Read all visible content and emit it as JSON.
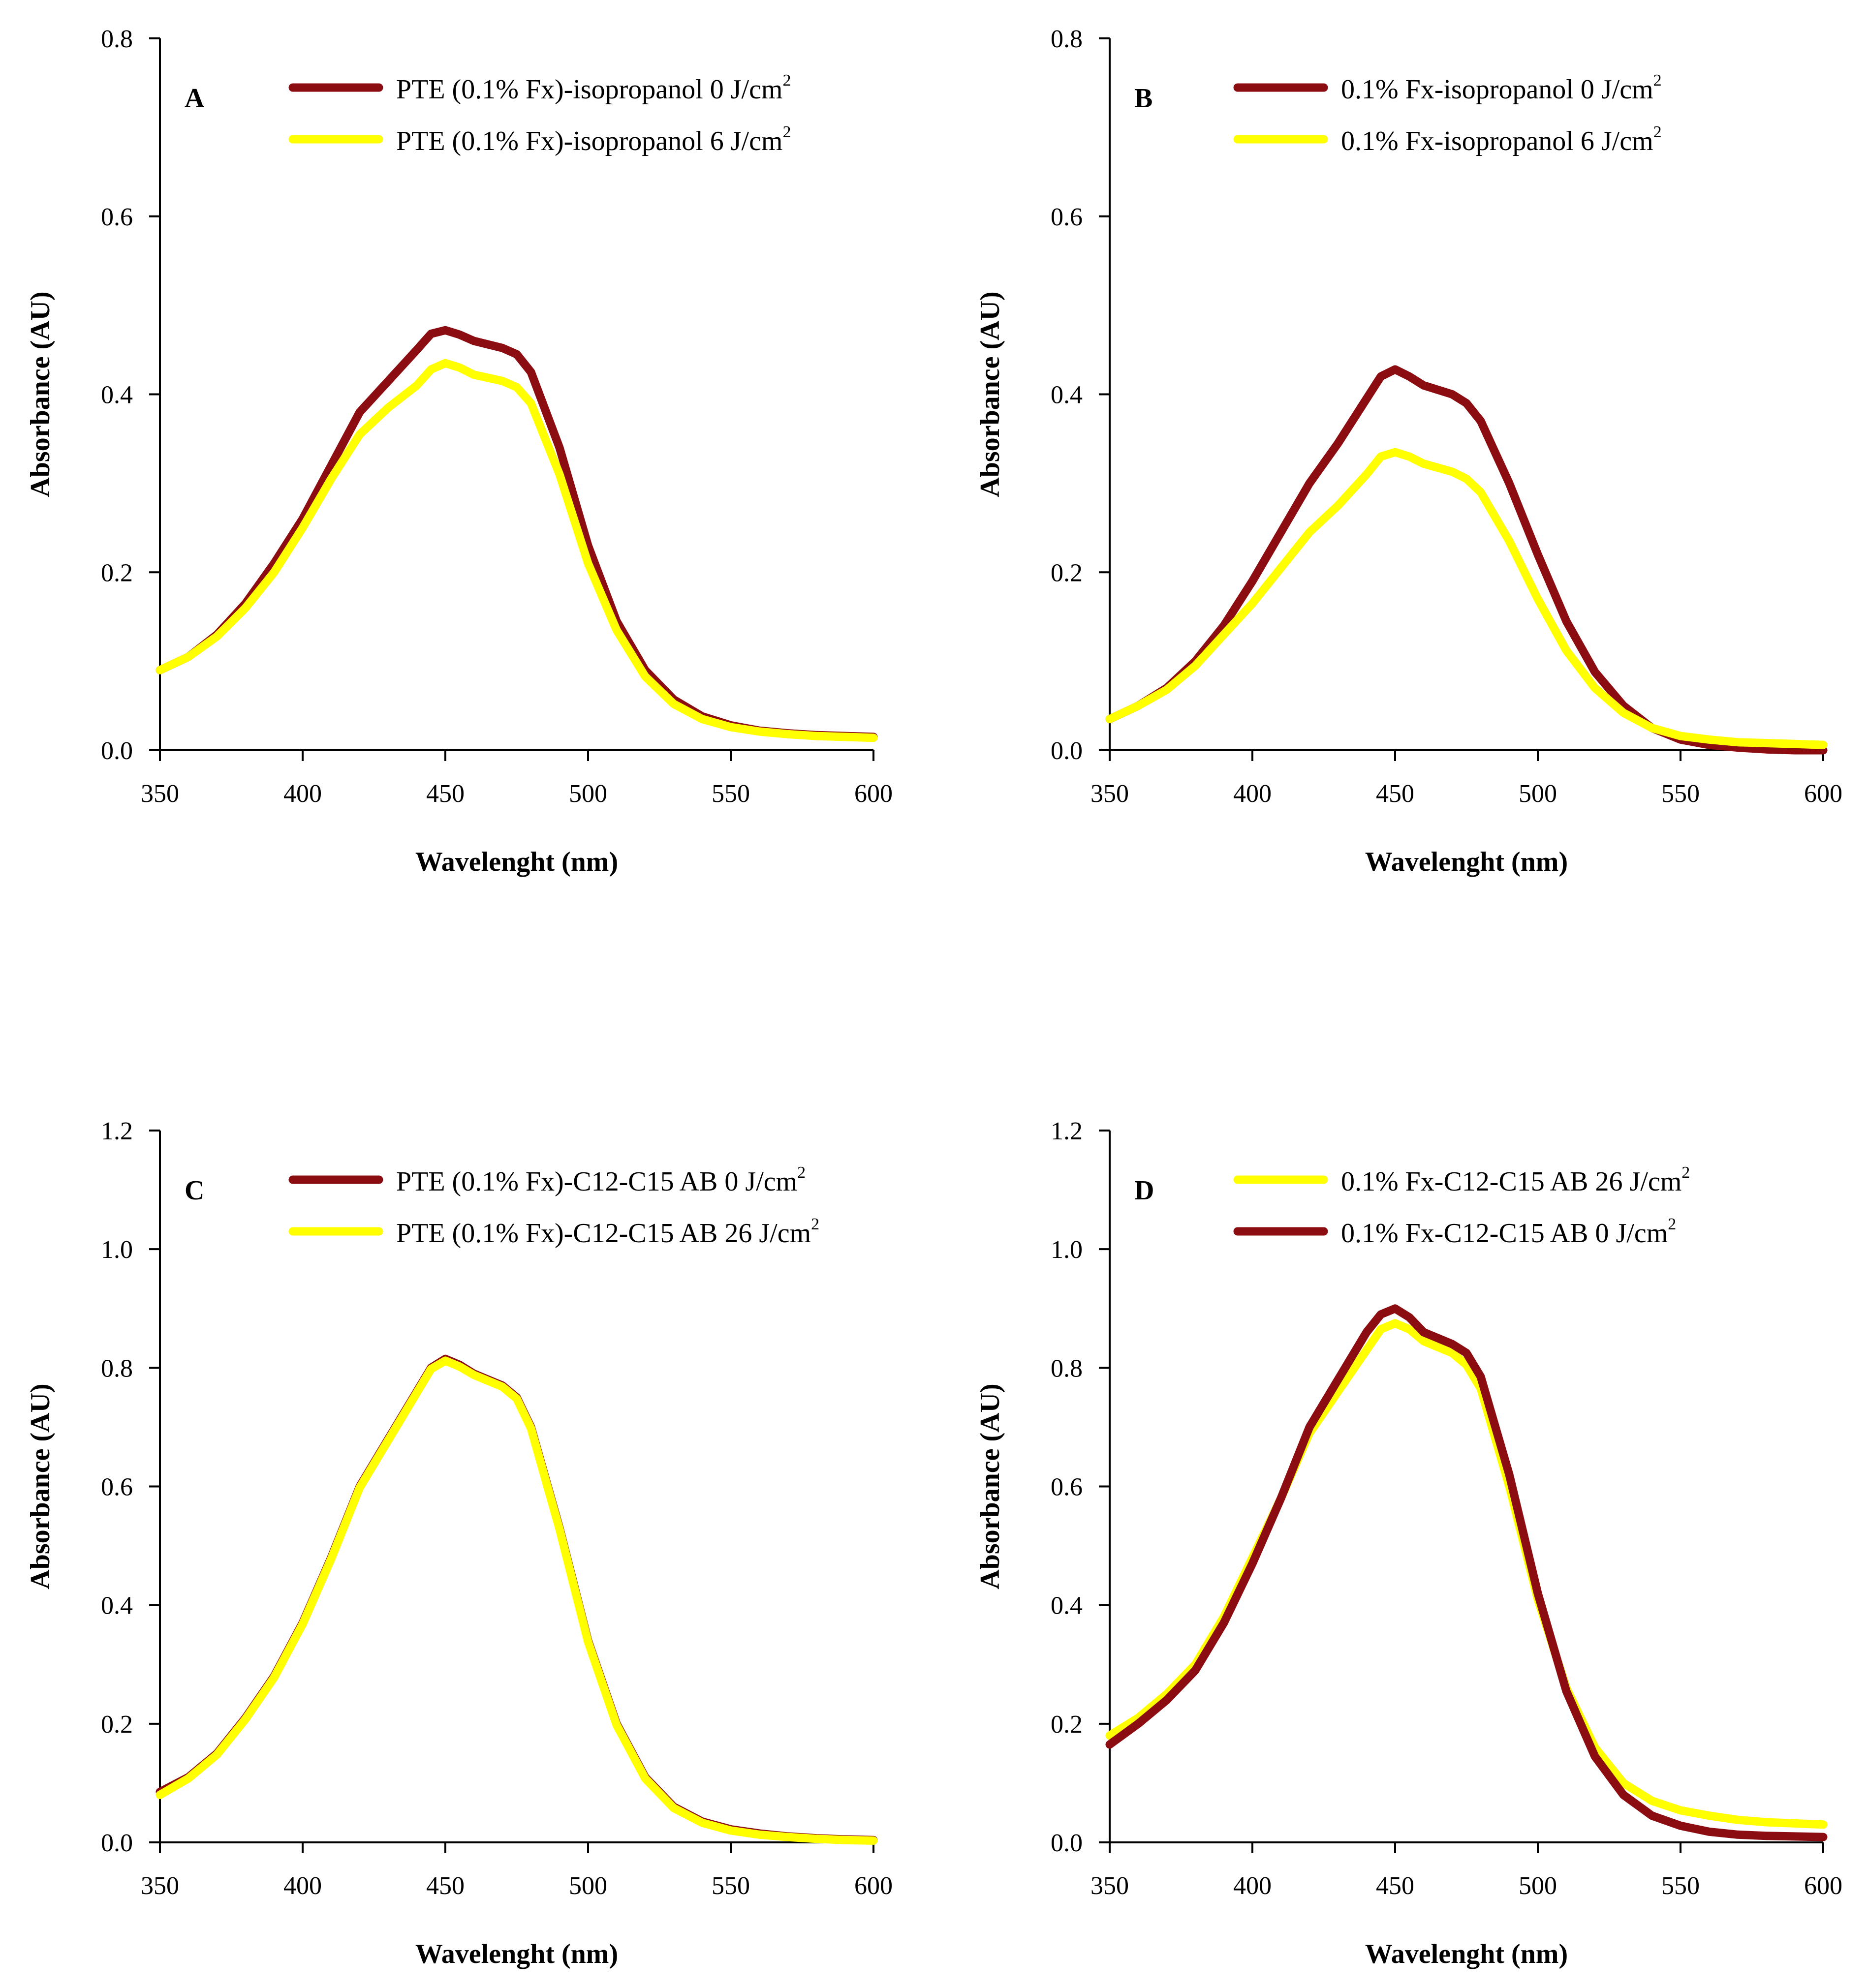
{
  "colors": {
    "dark_red": "#8b0d12",
    "yellow": "#ffff00",
    "axis": "#000000"
  },
  "chart_data": [
    {
      "type": "line",
      "panel": "A",
      "xlabel": "Wavelenght (nm)",
      "ylabel": "Absorbance (AU)",
      "xlim": [
        350,
        600
      ],
      "ylim": [
        0,
        0.8
      ],
      "xticks": [
        "350",
        "400",
        "450",
        "500",
        "550",
        "600"
      ],
      "yticks": [
        "0.0",
        "0.2",
        "0.4",
        "0.6",
        "0.8"
      ],
      "legend_position": "top-right",
      "series": [
        {
          "name": "PTE (0.1% Fx)-isopropanol 0 J/cm",
          "sup": "2",
          "color": "#8b0d12",
          "x": [
            350,
            360,
            370,
            380,
            390,
            400,
            410,
            420,
            430,
            440,
            445,
            450,
            455,
            460,
            470,
            475,
            480,
            490,
            500,
            510,
            520,
            530,
            540,
            550,
            560,
            570,
            580,
            590,
            600
          ],
          "y": [
            0.09,
            0.105,
            0.13,
            0.165,
            0.21,
            0.26,
            0.32,
            0.38,
            0.415,
            0.45,
            0.468,
            0.472,
            0.467,
            0.46,
            0.452,
            0.445,
            0.425,
            0.34,
            0.23,
            0.145,
            0.09,
            0.057,
            0.038,
            0.028,
            0.022,
            0.019,
            0.017,
            0.016,
            0.015
          ]
        },
        {
          "name": "PTE (0.1% Fx)-isopropanol 6 J/cm",
          "sup": "2",
          "color": "#ffff00",
          "x": [
            350,
            360,
            370,
            380,
            390,
            400,
            410,
            420,
            430,
            440,
            445,
            450,
            455,
            460,
            470,
            475,
            480,
            490,
            500,
            510,
            520,
            530,
            540,
            550,
            560,
            570,
            580,
            590,
            600
          ],
          "y": [
            0.09,
            0.105,
            0.128,
            0.16,
            0.2,
            0.25,
            0.305,
            0.355,
            0.385,
            0.41,
            0.428,
            0.435,
            0.43,
            0.422,
            0.415,
            0.408,
            0.39,
            0.31,
            0.21,
            0.135,
            0.083,
            0.052,
            0.035,
            0.026,
            0.021,
            0.018,
            0.016,
            0.015,
            0.014
          ]
        }
      ]
    },
    {
      "type": "line",
      "panel": "B",
      "xlabel": "Wavelenght (nm)",
      "ylabel": "Absorbance (AU)",
      "xlim": [
        350,
        600
      ],
      "ylim": [
        0,
        0.8
      ],
      "xticks": [
        "350",
        "400",
        "450",
        "500",
        "550",
        "600"
      ],
      "yticks": [
        "0.0",
        "0.2",
        "0.4",
        "0.6",
        "0.8"
      ],
      "legend_position": "top-right",
      "series": [
        {
          "name": "0.1% Fx-isopropanol 0 J/cm",
          "sup": "2",
          "color": "#8b0d12",
          "x": [
            350,
            360,
            370,
            380,
            390,
            400,
            410,
            420,
            430,
            440,
            445,
            450,
            455,
            460,
            470,
            475,
            480,
            490,
            500,
            510,
            520,
            530,
            540,
            550,
            560,
            570,
            580,
            590,
            600
          ],
          "y": [
            0.035,
            0.05,
            0.07,
            0.1,
            0.14,
            0.19,
            0.245,
            0.3,
            0.345,
            0.395,
            0.42,
            0.428,
            0.42,
            0.41,
            0.4,
            0.39,
            0.37,
            0.3,
            0.22,
            0.145,
            0.088,
            0.05,
            0.025,
            0.012,
            0.006,
            0.003,
            0.001,
            0.0,
            0.0
          ]
        },
        {
          "name": "0.1% Fx-isopropanol 6 J/cm",
          "sup": "2",
          "color": "#ffff00",
          "x": [
            350,
            360,
            370,
            380,
            390,
            400,
            410,
            420,
            430,
            440,
            445,
            450,
            455,
            460,
            470,
            475,
            480,
            490,
            500,
            510,
            520,
            530,
            540,
            550,
            560,
            570,
            580,
            590,
            600
          ],
          "y": [
            0.035,
            0.05,
            0.068,
            0.095,
            0.13,
            0.165,
            0.205,
            0.245,
            0.275,
            0.31,
            0.33,
            0.335,
            0.33,
            0.322,
            0.313,
            0.305,
            0.29,
            0.235,
            0.17,
            0.112,
            0.07,
            0.042,
            0.025,
            0.016,
            0.012,
            0.009,
            0.008,
            0.007,
            0.006
          ]
        }
      ]
    },
    {
      "type": "line",
      "panel": "C",
      "xlabel": "Wavelenght (nm)",
      "ylabel": "Absorbance (AU)",
      "xlim": [
        350,
        600
      ],
      "ylim": [
        0,
        1.2
      ],
      "xticks": [
        "350",
        "400",
        "450",
        "500",
        "550",
        "600"
      ],
      "yticks": [
        "0.0",
        "0.2",
        "0.4",
        "0.6",
        "0.8",
        "1.0",
        "1.2"
      ],
      "legend_position": "top-right",
      "series": [
        {
          "name": "PTE (0.1% Fx)-C12-C15 AB 0 J/cm",
          "sup": "2",
          "color": "#8b0d12",
          "x": [
            350,
            360,
            370,
            380,
            390,
            400,
            410,
            420,
            430,
            440,
            445,
            450,
            455,
            460,
            470,
            475,
            480,
            490,
            500,
            510,
            520,
            530,
            540,
            550,
            560,
            570,
            580,
            590,
            600
          ],
          "y": [
            0.085,
            0.11,
            0.15,
            0.21,
            0.28,
            0.37,
            0.48,
            0.6,
            0.68,
            0.76,
            0.8,
            0.815,
            0.805,
            0.79,
            0.77,
            0.75,
            0.7,
            0.53,
            0.34,
            0.2,
            0.11,
            0.06,
            0.035,
            0.022,
            0.015,
            0.01,
            0.007,
            0.005,
            0.004
          ]
        },
        {
          "name": "PTE (0.1% Fx)-C12-C15 AB 26 J/cm",
          "sup": "2",
          "color": "#ffff00",
          "x": [
            350,
            360,
            370,
            380,
            390,
            400,
            410,
            420,
            430,
            440,
            445,
            450,
            455,
            460,
            470,
            475,
            480,
            490,
            500,
            510,
            520,
            530,
            540,
            550,
            560,
            570,
            580,
            590,
            600
          ],
          "y": [
            0.08,
            0.108,
            0.148,
            0.208,
            0.278,
            0.368,
            0.478,
            0.598,
            0.678,
            0.758,
            0.798,
            0.812,
            0.802,
            0.788,
            0.768,
            0.748,
            0.698,
            0.528,
            0.338,
            0.198,
            0.108,
            0.058,
            0.033,
            0.02,
            0.013,
            0.009,
            0.006,
            0.004,
            0.003
          ]
        }
      ]
    },
    {
      "type": "line",
      "panel": "D",
      "xlabel": "Wavelenght (nm)",
      "ylabel": "Absorbance (AU)",
      "xlim": [
        350,
        600
      ],
      "ylim": [
        0,
        1.2
      ],
      "xticks": [
        "350",
        "400",
        "450",
        "500",
        "550",
        "600"
      ],
      "yticks": [
        "0.0",
        "0.2",
        "0.4",
        "0.6",
        "0.8",
        "1.0",
        "1.2"
      ],
      "legend_position": "top-right",
      "series": [
        {
          "name": "0.1% Fx-C12-C15 AB 26 J/cm",
          "sup": "2",
          "color": "#ffff00",
          "x": [
            350,
            360,
            370,
            380,
            390,
            400,
            410,
            420,
            430,
            440,
            445,
            450,
            455,
            460,
            470,
            475,
            480,
            490,
            500,
            510,
            520,
            530,
            540,
            550,
            560,
            570,
            580,
            590,
            600
          ],
          "y": [
            0.18,
            0.21,
            0.25,
            0.3,
            0.38,
            0.48,
            0.58,
            0.69,
            0.76,
            0.83,
            0.865,
            0.875,
            0.865,
            0.845,
            0.825,
            0.805,
            0.765,
            0.6,
            0.41,
            0.26,
            0.16,
            0.1,
            0.07,
            0.054,
            0.045,
            0.038,
            0.034,
            0.032,
            0.03
          ]
        },
        {
          "name": "0.1% Fx-C12-C15 AB 0 J/cm",
          "sup": "2",
          "color": "#8b0d12",
          "x": [
            350,
            360,
            370,
            380,
            390,
            400,
            410,
            420,
            430,
            440,
            445,
            450,
            455,
            460,
            470,
            475,
            480,
            490,
            500,
            510,
            520,
            530,
            540,
            550,
            560,
            570,
            580,
            590,
            600
          ],
          "y": [
            0.165,
            0.2,
            0.24,
            0.29,
            0.37,
            0.47,
            0.58,
            0.7,
            0.78,
            0.86,
            0.89,
            0.9,
            0.885,
            0.86,
            0.84,
            0.825,
            0.785,
            0.62,
            0.42,
            0.255,
            0.145,
            0.08,
            0.045,
            0.028,
            0.018,
            0.013,
            0.011,
            0.01,
            0.009
          ]
        }
      ]
    }
  ]
}
